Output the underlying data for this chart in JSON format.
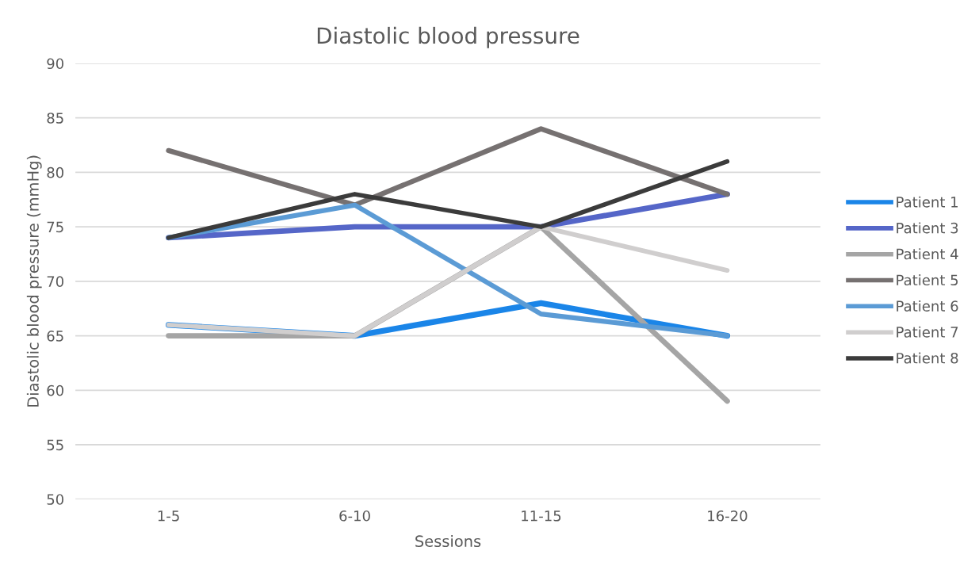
{
  "chart_data": {
    "type": "line",
    "title": "Diastolic blood pressure",
    "xlabel": "Sessions",
    "ylabel": "Diastolic blood pressure (mmHg)",
    "categories": [
      "1-5",
      "6-10",
      "11-15",
      "16-20"
    ],
    "series": [
      {
        "name": "Patient 1",
        "color": "#1a85e8",
        "values": [
          66,
          65,
          68,
          65
        ]
      },
      {
        "name": "Patient 3",
        "color": "#5566c8",
        "values": [
          74,
          75,
          75,
          78
        ]
      },
      {
        "name": "Patient 4",
        "color": "#a5a5a5",
        "values": [
          65,
          65,
          75,
          59
        ]
      },
      {
        "name": "Patient 5",
        "color": "#767171",
        "values": [
          82,
          77,
          84,
          78
        ]
      },
      {
        "name": "Patient 6",
        "color": "#5b9bd5",
        "values": [
          74,
          77,
          67,
          65
        ]
      },
      {
        "name": "Patient 7",
        "color": "#d0cece",
        "values": [
          66,
          65,
          75,
          71
        ]
      },
      {
        "name": "Patient 8",
        "color": "#3b3b3b",
        "values": [
          74,
          78,
          75,
          81
        ]
      }
    ],
    "ylim": [
      50,
      90
    ],
    "yticks": [
      50,
      55,
      60,
      65,
      70,
      75,
      80,
      85,
      90
    ],
    "grid": "y",
    "legend": "right",
    "marker": "none",
    "line_style": "solid"
  }
}
